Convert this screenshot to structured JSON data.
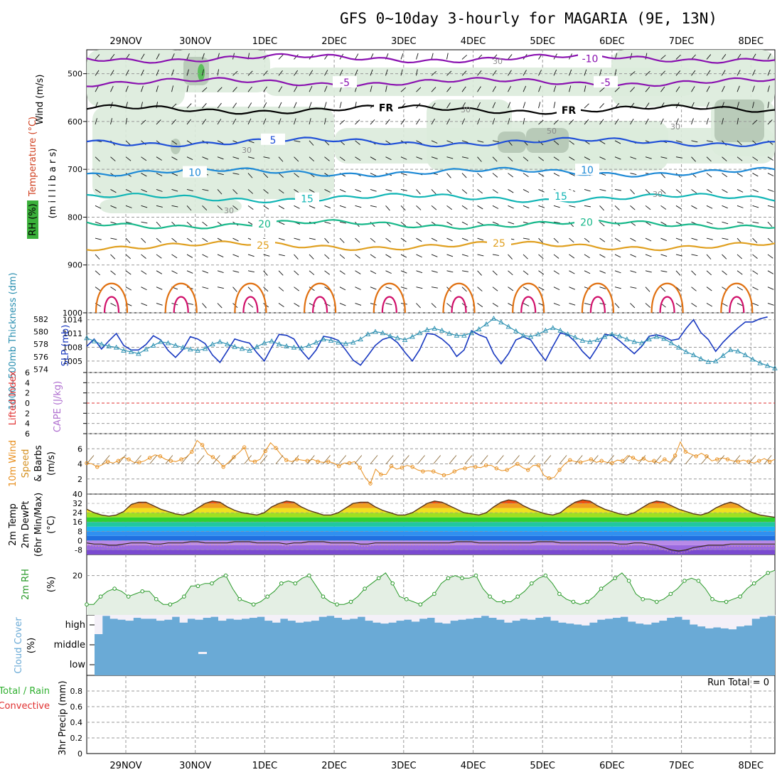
{
  "title": "GFS 0~10day 3-hourly for MAGARIA (9E, 13N)",
  "colors": {
    "temp_minus10": "#8a12b0",
    "temp_minus5": "#8a12b0",
    "temp_fr": "#000000",
    "temp_5": "#1f4fd8",
    "temp_10": "#1e8ad6",
    "temp_15": "#10b5b5",
    "temp_20": "#17b88a",
    "temp_25": "#e0a020",
    "temp_30": "#e07010",
    "temp_35": "#d0106a",
    "rh_fill": "#dcebdc",
    "rh_dark": "#a8bca8",
    "thickness": "#2a8fb0",
    "slp": "#1838c0",
    "lifted": "#e03030",
    "cape": "#b070d0",
    "wind10": "#e89020",
    "rh2m": "#2a9a2a",
    "cloud": "#6aaad6",
    "grid": "#999999"
  },
  "chart_data": [
    {
      "name": "upper-air",
      "type": "contour",
      "x_date_labels": [
        "29NOV",
        "30NOV",
        "1DEC",
        "2DEC",
        "3DEC",
        "4DEC",
        "5DEC",
        "6DEC",
        "7DEC",
        "8DEC"
      ],
      "ylabel_lines": [
        "Wind (m/s)",
        "Temperature (°C)",
        "(m i l l i b a r s)",
        "RH (%)"
      ],
      "y_ticks": [
        500,
        600,
        700,
        800,
        900,
        1000
      ],
      "ylim": [
        450,
        1000
      ],
      "isotherms": [
        {
          "label": "-10",
          "level_mb": 468
        },
        {
          "label": "-5",
          "level_mb": 518
        },
        {
          "label": "FR",
          "level_mb": 575
        },
        {
          "label": "5",
          "level_mb": 643
        },
        {
          "label": "10",
          "level_mb": 706
        },
        {
          "label": "15",
          "level_mb": 760
        },
        {
          "label": "20",
          "level_mb": 815
        },
        {
          "label": "25",
          "level_mb": 860
        }
      ],
      "rh_labels": [
        "30",
        "50"
      ]
    },
    {
      "name": "thickness-slp",
      "type": "line",
      "ylabel_thickness": "1000~500mb Thickness (dm)",
      "ylabel_slp": "SLP (mb)",
      "thickness_ticks": [
        574,
        576,
        578,
        580,
        582
      ],
      "slp_ticks": [
        1005,
        1008,
        1011,
        1014
      ],
      "thickness_ylim": [
        573.5,
        583
      ],
      "slp_ylim": [
        1002.5,
        1015.5
      ],
      "thickness": [
        579,
        578.5,
        578,
        577.7,
        577.5,
        577,
        576.8,
        576.5,
        577.2,
        577.8,
        578.4,
        578.2,
        577.8,
        577.5,
        577.2,
        577,
        577.3,
        578,
        578.4,
        578,
        577.6,
        577.3,
        577,
        577.6,
        578.2,
        578.5,
        578,
        577.7,
        577.5,
        577.4,
        577.8,
        578.3,
        578.8,
        578.6,
        578.3,
        578.1,
        578.3,
        578.8,
        579.6,
        580,
        579.8,
        579.3,
        579,
        578.7,
        579.2,
        579.8,
        580.3,
        580.5,
        580.2,
        579.7,
        579.4,
        579.4,
        579.8,
        580.4,
        581.2,
        582.1,
        581.5,
        580.8,
        580.1,
        579.4,
        579.2,
        579.6,
        580.2,
        580.6,
        580.2,
        579.6,
        579.1,
        578.6,
        578.4,
        578.7,
        579.2,
        579.6,
        579.3,
        578.8,
        578.4,
        578.2,
        578.8,
        579.2,
        578.9,
        578.2,
        577.5,
        576.8,
        576.3,
        575.7,
        575.2,
        575.3,
        576.2,
        577.1,
        576.9,
        576.3,
        575.6,
        575,
        574.6,
        574.2
      ],
      "slp": [
        1008.2,
        1009.8,
        1007.6,
        1009.4,
        1011.0,
        1008.4,
        1007.4,
        1007.4,
        1008.6,
        1010.5,
        1009.6,
        1007.3,
        1005.8,
        1007.5,
        1010.3,
        1009.8,
        1008.8,
        1006.3,
        1004.7,
        1007.2,
        1009.8,
        1009.3,
        1008.9,
        1006.8,
        1005.0,
        1008.0,
        1010.8,
        1010.6,
        1009.8,
        1007.3,
        1005.4,
        1007.4,
        1010.4,
        1010.1,
        1009.5,
        1007.4,
        1005.2,
        1004.1,
        1006.2,
        1008.4,
        1009.7,
        1010.2,
        1009.0,
        1006.9,
        1005.0,
        1007.5,
        1011.0,
        1010.8,
        1009.8,
        1008.4,
        1006.0,
        1007.4,
        1011.6,
        1010.7,
        1010.1,
        1006.6,
        1004.4,
        1006.6,
        1009.6,
        1010.3,
        1009.6,
        1007.2,
        1005.1,
        1008.2,
        1011.1,
        1010.7,
        1009.2,
        1007.1,
        1005.5,
        1008.0,
        1010.8,
        1010.6,
        1009.4,
        1008.0,
        1006.6,
        1008.2,
        1010.4,
        1010.7,
        1010.3,
        1009.5,
        1009.8,
        1012.1,
        1014.0,
        1011.2,
        1009.7,
        1007.1,
        1009.1,
        1010.7,
        1012.2,
        1013.5,
        1013.5,
        1014.2,
        1014.6
      ]
    },
    {
      "name": "cape-lifted",
      "type": "line",
      "ylabel_lifted": "Lifted Index",
      "ylabel_cape": "CAPE (J/kg)",
      "y_ticks": [
        -6,
        -4,
        -2,
        0,
        2,
        4,
        6
      ],
      "tick_labels": [
        "6",
        "4",
        "2",
        "0",
        "2",
        "4",
        "6"
      ],
      "ylim": [
        -6,
        6
      ]
    },
    {
      "name": "wind10m",
      "type": "line",
      "ylabel": [
        "10m Wind",
        "Speed",
        "& Barbs",
        "(m/s)"
      ],
      "y_ticks": [
        2,
        4,
        6
      ],
      "ylim": [
        0,
        8
      ],
      "values": [
        4.1,
        4.0,
        3.6,
        3.9,
        4.3,
        4.1,
        4.4,
        4.9,
        4.6,
        4.2,
        4.2,
        4.4,
        4.8,
        5.2,
        5.0,
        4.6,
        4.4,
        4.3,
        4.6,
        4.9,
        5.6,
        7.1,
        6.5,
        5.3,
        4.9,
        4.4,
        3.6,
        4.2,
        4.9,
        5.5,
        6.2,
        4.4,
        4.3,
        4.6,
        5.7,
        6.8,
        6.1,
        5.2,
        4.5,
        4.3,
        4.6,
        4.5,
        4.4,
        4.6,
        4.3,
        4.2,
        4.3,
        4.1,
        3.7,
        4.1,
        4.1,
        4.3,
        3.5,
        2.2,
        1.4,
        3.3,
        2.6,
        2.6,
        3.7,
        3.3,
        3.5,
        3.8,
        3.6,
        3.2,
        3.0,
        3.1,
        3.0,
        2.7,
        2.5,
        2.6,
        3.0,
        3.3,
        3.4,
        3.6,
        3.6,
        3.5,
        3.8,
        3.8,
        3.4,
        3.1,
        3.2,
        3.6,
        4.0,
        3.5,
        3.2,
        3.8,
        3.8,
        2.5,
        2.1,
        2.2,
        3.2,
        4.0,
        4.5,
        4.3,
        4.2,
        4.4,
        4.6,
        4.2,
        4.4,
        4.2,
        4.1,
        4.5,
        4.4,
        5.1,
        4.8,
        4.4,
        4.7,
        4.3,
        4.4,
        4.1,
        4.6,
        4.2,
        5.1,
        6.9,
        5.6,
        5.3,
        5.0,
        5.4,
        5.0,
        4.4,
        4.6,
        4.8,
        4.6,
        4.4,
        4.3,
        4.5,
        4.3,
        4.1,
        4.4,
        4.7,
        4.3,
        4.6
      ]
    },
    {
      "name": "temp2m",
      "type": "area",
      "ylabel": [
        "2m Temp",
        "2m DewPt",
        "(6hr Min/Max)",
        "(°C)"
      ],
      "y_ticks": [
        -8,
        0,
        8,
        16,
        24,
        32,
        40
      ],
      "ylim": [
        -12,
        40
      ],
      "temperature": [
        27,
        24,
        22,
        21,
        22,
        25,
        31,
        33,
        33,
        30,
        27,
        25,
        23,
        22,
        24,
        28,
        32,
        34,
        33,
        29,
        26,
        24,
        23,
        22,
        24,
        29,
        32,
        34,
        33,
        29,
        26,
        24,
        22,
        22,
        24,
        28,
        32,
        33,
        33,
        29,
        26,
        24,
        22,
        22,
        24,
        28,
        32,
        34,
        33,
        30,
        27,
        24,
        23,
        22,
        24,
        29,
        33,
        35,
        34,
        30,
        27,
        25,
        23,
        22,
        24,
        29,
        33,
        35,
        34,
        30,
        27,
        25,
        23,
        22,
        24,
        28,
        32,
        34,
        33,
        30,
        27,
        25,
        23,
        22,
        24,
        28,
        31,
        33,
        31,
        27,
        24,
        22,
        21,
        20
      ],
      "dewpoint": [
        -2,
        -3,
        -3,
        -4,
        -4,
        -3,
        -2,
        -2,
        -2,
        -3,
        -3,
        -2,
        -2,
        -2,
        -1,
        -1,
        -2,
        -2,
        -2,
        -2,
        -1,
        -1,
        -1,
        -2,
        -2,
        -2,
        -2,
        -3,
        -2,
        -2,
        -1,
        -1,
        -1,
        -2,
        -2,
        -2,
        -2,
        -3,
        -3,
        -2,
        -2,
        -2,
        -2,
        -2,
        -2,
        -2,
        -2,
        -2,
        -2,
        -2,
        -1,
        -1,
        -1,
        -2,
        -2,
        -2,
        -2,
        -2,
        -2,
        -2,
        -2,
        -1,
        -1,
        -1,
        -2,
        -2,
        -2,
        -2,
        -2,
        -2,
        -2,
        -2,
        -3,
        -3,
        -2,
        -2,
        -3,
        -4,
        -6,
        -8,
        -9,
        -8,
        -6,
        -5,
        -4,
        -4,
        -4,
        -3,
        -3,
        -3,
        -3,
        -3,
        -3,
        -3
      ]
    },
    {
      "name": "rh2m",
      "type": "line",
      "ylabel": [
        "2m RH",
        "(%)"
      ],
      "y_ticks": [
        20
      ],
      "ylim": [
        5,
        28
      ],
      "values": [
        9,
        9,
        12,
        14,
        15,
        14,
        12,
        13,
        14,
        14,
        11,
        9,
        9,
        10,
        12,
        16,
        16,
        17,
        17,
        19,
        20,
        15,
        11,
        10,
        9,
        10,
        12,
        14,
        17,
        18,
        17,
        19,
        20,
        16,
        12,
        10,
        9,
        9,
        10,
        12,
        15,
        17,
        19,
        21,
        17,
        12,
        11,
        10,
        9,
        11,
        13,
        17,
        19,
        20,
        19,
        19,
        20,
        15,
        12,
        10,
        10,
        10,
        12,
        14,
        17,
        19,
        20,
        17,
        13,
        11,
        10,
        9,
        10,
        12,
        15,
        17,
        19,
        21,
        18,
        13,
        11,
        11,
        10,
        11,
        13,
        15,
        18,
        19,
        18,
        15,
        11,
        10,
        10,
        11,
        12,
        15,
        17,
        19,
        21,
        22
      ]
    },
    {
      "name": "cloud-cover",
      "type": "bar",
      "ylabel": [
        "Cloud Cover",
        "(%)"
      ],
      "levels": [
        "high",
        "middle",
        "low"
      ],
      "high_cover": [
        0,
        95,
        80,
        75,
        70,
        85,
        80,
        80,
        70,
        75,
        90,
        60,
        80,
        75,
        85,
        90,
        70,
        80,
        75,
        80,
        85,
        90,
        70,
        60,
        80,
        70,
        60,
        65,
        70,
        90,
        95,
        85,
        75,
        80,
        90,
        70,
        60,
        55,
        60,
        70,
        75,
        65,
        80,
        85,
        60,
        55,
        70,
        75,
        80,
        85,
        95,
        85,
        75,
        60,
        70,
        80,
        75,
        85,
        90,
        70,
        60,
        55,
        50,
        45,
        60,
        75,
        80,
        85,
        90,
        65,
        55,
        50,
        60,
        70,
        85,
        90,
        75,
        50,
        40,
        30,
        35,
        30,
        25,
        40,
        45,
        80,
        90,
        95
      ]
    },
    {
      "name": "precip",
      "type": "bar",
      "ylabel_total": "Total / Rain",
      "ylabel_conv": "Convective",
      "ylabel": "3hr Precip (mm)",
      "y_ticks": [
        0,
        0.2,
        0.4,
        0.6,
        0.8
      ],
      "ylim": [
        0,
        1
      ],
      "values": [],
      "run_total_label": "Run Total = 0"
    }
  ]
}
